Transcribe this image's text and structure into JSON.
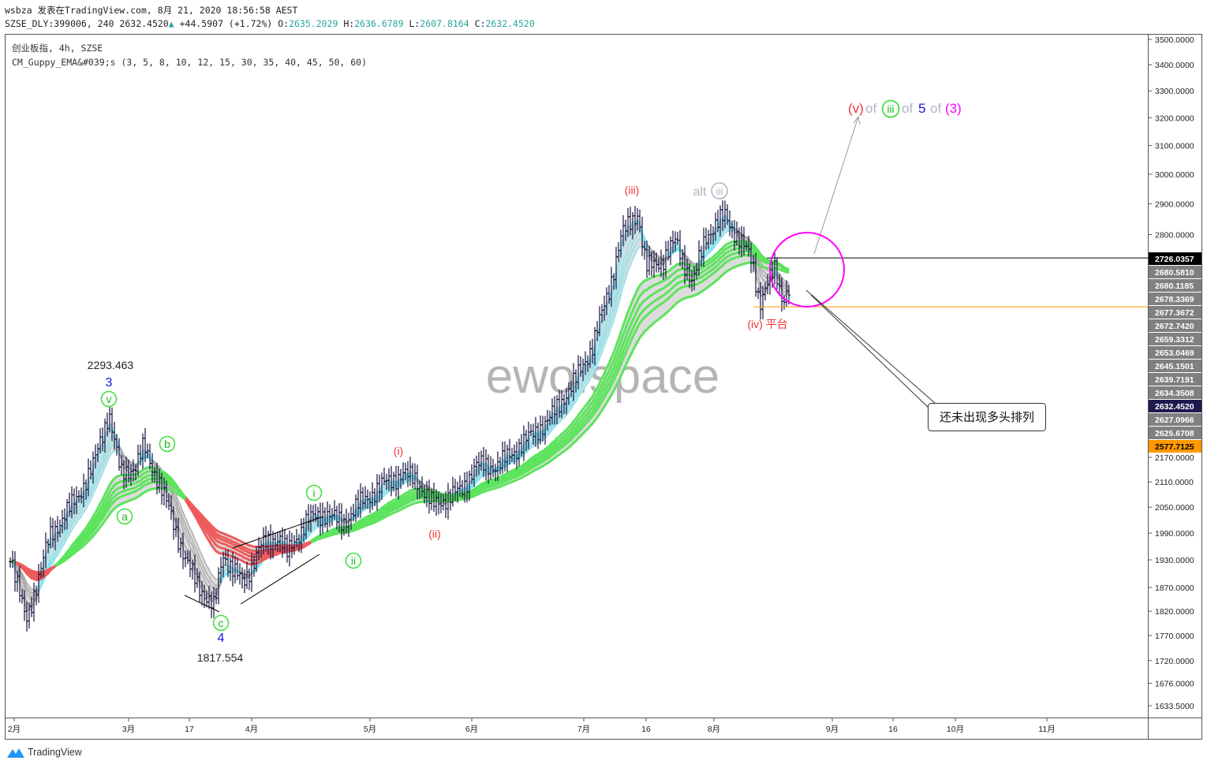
{
  "header": {
    "author_line": "wsbza 发表在TradingView.com, 8月 21, 2020 18:56:58 AEST",
    "symbol": "SZSE_DLY:399006, 240",
    "last": "2632.4520",
    "change": "+44.5907 (+1.72%)",
    "open_label": "O:",
    "open": "2635.2029",
    "high_label": "H:",
    "high": "2636.6789",
    "low_label": "L:",
    "low": "2607.8164",
    "close_label": "C:",
    "close": "2632.4520",
    "up_color": "#26a69a"
  },
  "legend": {
    "title": "创业板指, 4h, SZSE",
    "indicator": "CM_Guppy_EMA&#039;s (3, 5, 8, 10, 12, 15, 30, 35, 40, 45, 50, 60)"
  },
  "watermark": "ewo.space",
  "annotations": {
    "peak_value": "2293.463",
    "wave3": "3",
    "wave_v": "v",
    "wave_b": "b",
    "wave_a": "a",
    "wave_c": "c",
    "wave4": "4",
    "low_value": "1817.554",
    "wave_i_circ": "i",
    "wave_ii_circ": "ii",
    "wave_i": "(i)",
    "wave_ii": "(ii)",
    "wave_iii": "(iii)",
    "alt": "alt",
    "alt_iii": "iii",
    "wave_iv": "(iv) 平台",
    "target_v": "(v)",
    "target_of1": "of",
    "target_iii": "iii",
    "target_of2": "of",
    "target_5": "5",
    "target_of3": "of",
    "target_3": "(3)",
    "callout": "还未出现多头排列"
  },
  "footer": {
    "brand": "TradingView"
  },
  "chart_data": {
    "type": "ohlc-bar",
    "yscale": "log",
    "ylim": [
      1600,
      3550
    ],
    "grid": false,
    "y_ticks": [
      "3500.0000",
      "3400.0000",
      "3300.0000",
      "3200.0000",
      "3100.0000",
      "3000.0000",
      "2900.0000",
      "2800.0000",
      "2170.0000",
      "2110.0000",
      "2050.0000",
      "1990.0000",
      "1930.0000",
      "1870.0000",
      "1820.0000",
      "1770.0000",
      "1720.0000",
      "1676.0000",
      "1633.5000"
    ],
    "price_labels": [
      {
        "value": "2726.0357",
        "style": "line"
      },
      {
        "value": "2680.5810",
        "style": "ema"
      },
      {
        "value": "2680.1185",
        "style": "ema"
      },
      {
        "value": "2678.3369",
        "style": "ema"
      },
      {
        "value": "2677.3672",
        "style": "ema"
      },
      {
        "value": "2672.7420",
        "style": "ema"
      },
      {
        "value": "2659.3312",
        "style": "ema"
      },
      {
        "value": "2653.0469",
        "style": "ema"
      },
      {
        "value": "2645.1501",
        "style": "ema"
      },
      {
        "value": "2639.7191",
        "style": "ema"
      },
      {
        "value": "2634.3508",
        "style": "ema"
      },
      {
        "value": "2632.4520",
        "style": "last"
      },
      {
        "value": "2627.0966",
        "style": "ema"
      },
      {
        "value": "2625.6708",
        "style": "ema"
      },
      {
        "value": "2577.7125",
        "style": "orange"
      }
    ],
    "x_ticks": [
      {
        "label": "2月",
        "date": "2020-02-01"
      },
      {
        "label": "3月",
        "date": "2020-03-01"
      },
      {
        "label": "17",
        "date": "2020-03-17"
      },
      {
        "label": "4月",
        "date": "2020-04-01"
      },
      {
        "label": "5月",
        "date": "2020-05-01"
      },
      {
        "label": "6月",
        "date": "2020-06-01"
      },
      {
        "label": "7月",
        "date": "2020-07-01"
      },
      {
        "label": "16",
        "date": "2020-07-16"
      },
      {
        "label": "8月",
        "date": "2020-08-01"
      },
      {
        "label": "9月",
        "date": "2020-09-01"
      },
      {
        "label": "16",
        "date": "2020-09-16"
      },
      {
        "label": "10月",
        "date": "2020-10-01"
      },
      {
        "label": "11月",
        "date": "2020-11-01"
      }
    ],
    "ema_periods": [
      3,
      5,
      8,
      10,
      12,
      15,
      30,
      35,
      40,
      45,
      50,
      60
    ],
    "colors": {
      "bars": "#131340",
      "short_up": "#7ee6f2",
      "short_dn": "#a8a8a8",
      "long_up": "#5de45d",
      "long_dn": "#ef5b5b",
      "fill": "#dcdcdc",
      "hline": "#000000",
      "hline2": "#ff9800",
      "circle": "#ff00ff",
      "last_bg": "#1e1a4d",
      "orange_bg": "#ff9800",
      "ema_bg": "#808080"
    },
    "horizontal_lines": [
      2726.0357,
      2577.7125
    ],
    "price_path": [
      [
        "2020-01-31",
        1946
      ],
      [
        "2020-02-04",
        1797
      ],
      [
        "2020-02-10",
        1982
      ],
      [
        "2020-02-17",
        2073
      ],
      [
        "2020-02-21",
        2149
      ],
      [
        "2020-02-25",
        2285
      ],
      [
        "2020-02-28",
        2128
      ],
      [
        "2020-03-03",
        2149
      ],
      [
        "2020-03-05",
        2196
      ],
      [
        "2020-03-09",
        2109
      ],
      [
        "2020-03-12",
        2036
      ],
      [
        "2020-03-16",
        1929
      ],
      [
        "2020-03-19",
        1877
      ],
      [
        "2020-03-23",
        1826
      ],
      [
        "2020-03-25",
        1943
      ],
      [
        "2020-03-30",
        1877
      ],
      [
        "2020-04-03",
        1958
      ],
      [
        "2020-04-08",
        1982
      ],
      [
        "2020-04-10",
        1943
      ],
      [
        "2020-04-15",
        2019
      ],
      [
        "2020-04-20",
        2036
      ],
      [
        "2020-04-24",
        2011
      ],
      [
        "2020-04-28",
        2055
      ],
      [
        "2020-05-06",
        2109
      ],
      [
        "2020-05-11",
        2128
      ],
      [
        "2020-05-15",
        2118
      ],
      [
        "2020-05-20",
        2055
      ],
      [
        "2020-05-25",
        2073
      ],
      [
        "2020-05-29",
        2091
      ],
      [
        "2020-06-02",
        2149
      ],
      [
        "2020-06-08",
        2149
      ],
      [
        "2020-06-15",
        2208
      ],
      [
        "2020-06-22",
        2269
      ],
      [
        "2020-06-29",
        2374
      ],
      [
        "2020-07-03",
        2463
      ],
      [
        "2020-07-07",
        2623
      ],
      [
        "2020-07-10",
        2795
      ],
      [
        "2020-07-14",
        2872
      ],
      [
        "2020-07-16",
        2695
      ],
      [
        "2020-07-20",
        2720
      ],
      [
        "2020-07-23",
        2780
      ],
      [
        "2020-07-27",
        2645
      ],
      [
        "2020-07-30",
        2795
      ],
      [
        "2020-08-04",
        2861
      ],
      [
        "2020-08-07",
        2795
      ],
      [
        "2020-08-11",
        2720
      ],
      [
        "2020-08-13",
        2588
      ],
      [
        "2020-08-17",
        2695
      ],
      [
        "2020-08-19",
        2600
      ],
      [
        "2020-08-21",
        2632
      ]
    ]
  }
}
